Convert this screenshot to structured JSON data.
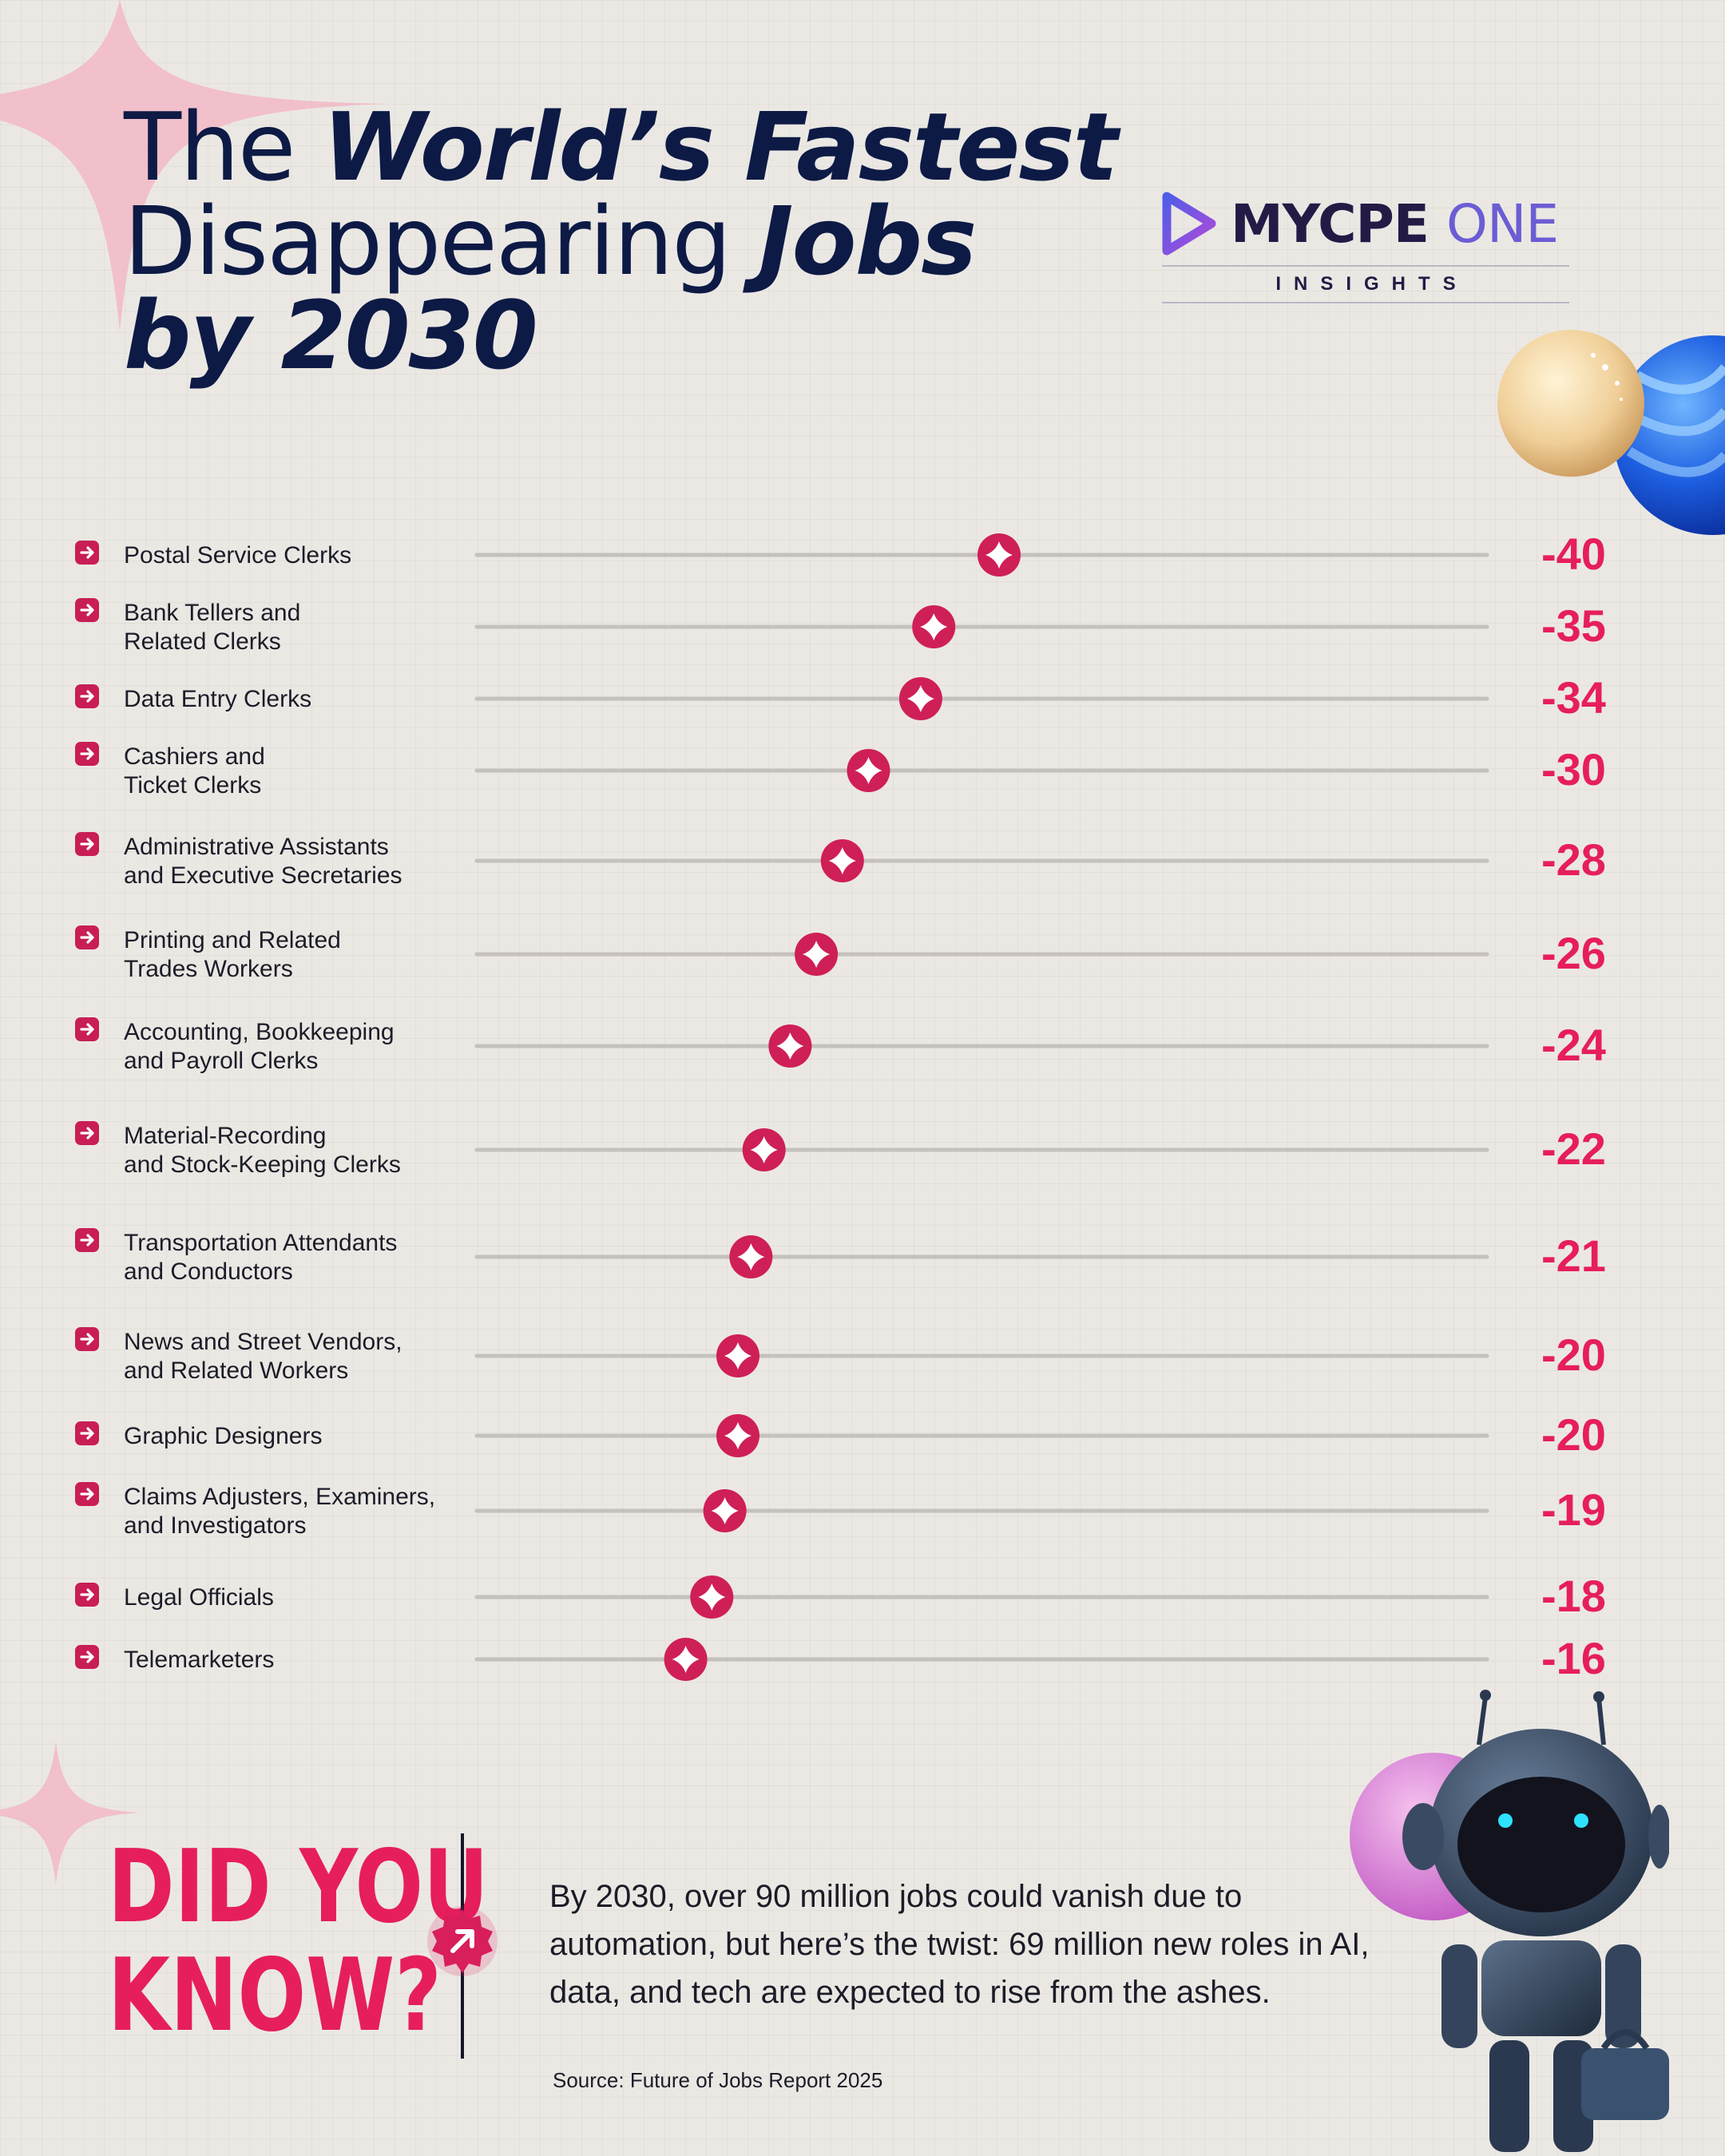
{
  "title": {
    "line1_a": "The ",
    "line1_b": "World’s Fastest",
    "line2_a": "Disappearing ",
    "line2_b": "Jobs",
    "line3": "by 2030"
  },
  "logo": {
    "brand": "MYCPE",
    "brand_accent": "ONE",
    "subtitle": "INSIGHTS"
  },
  "chart_data": {
    "type": "bar",
    "style": "lollipop",
    "categories": [
      [
        "Postal Service Clerks"
      ],
      [
        "Bank Tellers and",
        "Related Clerks"
      ],
      [
        "Data Entry Clerks"
      ],
      [
        "Cashiers and",
        "Ticket Clerks"
      ],
      [
        "Administrative Assistants",
        "and Executive Secretaries"
      ],
      [
        "Printing and Related",
        "Trades Workers"
      ],
      [
        "Accounting, Bookkeeping",
        "and Payroll Clerks"
      ],
      [
        "Material-Recording",
        "and Stock-Keeping Clerks"
      ],
      [
        "Transportation Attendants",
        "and Conductors"
      ],
      [
        "News and Street Vendors,",
        "and Related Workers"
      ],
      [
        "Graphic Designers"
      ],
      [
        "Claims Adjusters, Examiners,",
        "and Investigators"
      ],
      [
        "Legal Officials"
      ],
      [
        "Telemarketers"
      ]
    ],
    "values": [
      -40,
      -35,
      -34,
      -30,
      -28,
      -26,
      -24,
      -22,
      -21,
      -20,
      -20,
      -19,
      -18,
      -16
    ],
    "value_labels": [
      "-40",
      "-35",
      "-34",
      "-30",
      "-28",
      "-26",
      "-24",
      "-22",
      "-21",
      "-20",
      "-20",
      "-19",
      "-18",
      "-16"
    ],
    "track_color": "#c5c1bd",
    "bar_color": "#d6285f",
    "label_color": "#e61e5c"
  },
  "did_you_know": {
    "line1": "DID YOU",
    "line2": "KNOW?",
    "text": "By 2030, over 90 million jobs could vanish due to automation, but here’s the twist: 69 million new roles in AI, data, and tech are expected to rise from the ashes.",
    "source": "Source: Future of Jobs Report 2025"
  },
  "icons": {
    "bullet": "arrow-right-icon",
    "marker": "four-point-star-icon",
    "badge": "arrow-up-right-icon"
  }
}
